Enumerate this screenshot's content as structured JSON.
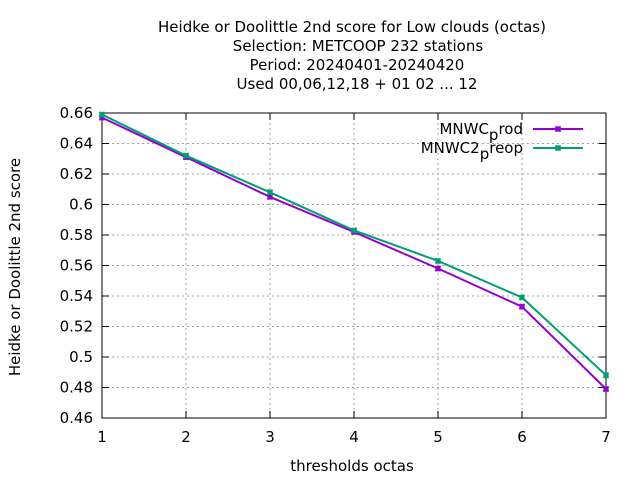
{
  "chart_data": {
    "type": "line",
    "title_lines": [
      "Heidke or Doolittle 2nd score  for Low clouds (octas)",
      "Selection: METCOOP    232 stations",
      "Period: 20240401-20240420",
      "Used  00,06,12,18 + 01 02 ... 12"
    ],
    "xlabel": "thresholds octas",
    "ylabel": "Heidke or Doolittle 2nd score",
    "xlim": [
      1,
      7
    ],
    "ylim": [
      0.46,
      0.66
    ],
    "x_ticks": [
      1,
      2,
      3,
      4,
      5,
      6,
      7
    ],
    "x_tick_labels": [
      "1",
      "2",
      "3",
      "4",
      "5",
      "6",
      "7"
    ],
    "y_ticks": [
      0.46,
      0.48,
      0.5,
      0.52,
      0.54,
      0.56,
      0.58,
      0.6,
      0.62,
      0.64,
      0.66
    ],
    "y_tick_labels": [
      "0.46",
      "0.48",
      "0.5",
      "0.52",
      "0.54",
      "0.56",
      "0.58",
      "0.6",
      "0.62",
      "0.64",
      "0.66"
    ],
    "grid": true,
    "legend_position": "top-right",
    "x": [
      1,
      2,
      3,
      4,
      5,
      6,
      7
    ],
    "series": [
      {
        "name_main": "MNWC",
        "name_sub": "p",
        "name_rest": "rod",
        "color": "#9400d3",
        "values": [
          0.657,
          0.631,
          0.605,
          0.582,
          0.558,
          0.533,
          0.479
        ]
      },
      {
        "name_main": "MNWC2",
        "name_sub": "p",
        "name_rest": "reop",
        "color": "#009e73",
        "values": [
          0.659,
          0.632,
          0.608,
          0.583,
          0.563,
          0.539,
          0.488
        ]
      }
    ]
  }
}
